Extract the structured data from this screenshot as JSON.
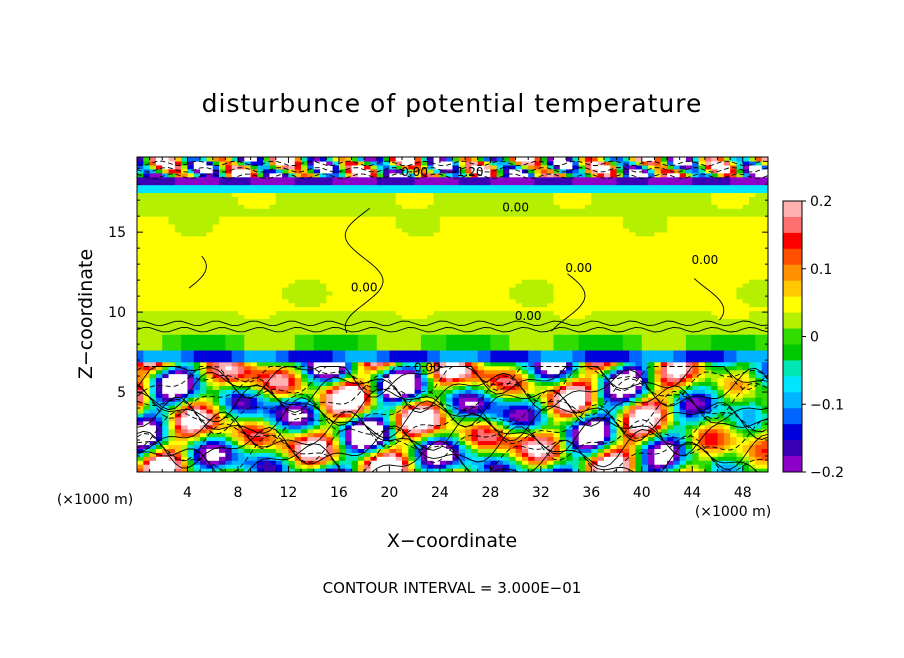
{
  "chart_data": {
    "type": "heatmap",
    "title": "disturbunce of potential temperature",
    "xlabel": "X−coordinate",
    "ylabel": "Z−coordinate",
    "x_unit": "(×1000 m)",
    "y_unit": "(×1000 m)",
    "xlim": [
      0,
      50
    ],
    "ylim": [
      0,
      19.7
    ],
    "x_ticks": [
      4,
      8,
      12,
      16,
      20,
      24,
      28,
      32,
      36,
      40,
      44,
      48
    ],
    "y_ticks": [
      5,
      10,
      15
    ],
    "colorbar": {
      "range": [
        -0.2,
        0.2
      ],
      "ticks": [
        "0.2",
        "0.1",
        "0",
        "−0.1",
        "−0.2"
      ],
      "tick_values": [
        0.2,
        0.1,
        0,
        -0.1,
        -0.2
      ],
      "colors": [
        "#ffb0b0",
        "#ff7070",
        "#ff0000",
        "#ff5000",
        "#ff9000",
        "#ffc800",
        "#ffff00",
        "#b4f000",
        "#32dc00",
        "#00c800",
        "#00e6b4",
        "#00e6ff",
        "#00b4ff",
        "#0064ff",
        "#0000dc",
        "#3c00b4",
        "#8c00c8"
      ]
    },
    "contour_labels": [
      "0.00",
      "−1.20",
      "0.00",
      "0.00",
      "0.00",
      "0.00",
      "0.00",
      "0.00"
    ],
    "footer": "CONTOUR INTERVAL = 3.000E−01"
  }
}
